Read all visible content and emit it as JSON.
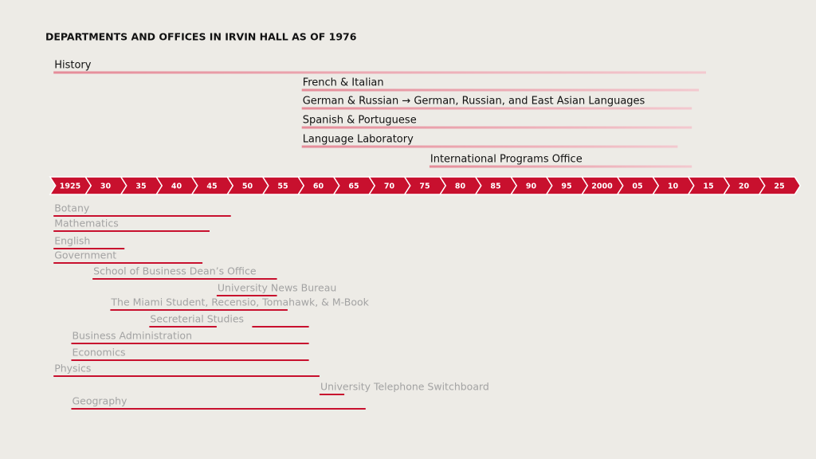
{
  "title": "DEPARTMENTS AND OFFICES IN IRVIN HALL AS OF 1976",
  "timeline": {
    "ticks": [
      1925,
      {
        "value": 1930,
        "label": "30"
      },
      {
        "value": 1935,
        "label": "35"
      },
      {
        "value": 1940,
        "label": "40"
      },
      {
        "value": 1945,
        "label": "45"
      },
      {
        "value": 1950,
        "label": "50"
      },
      {
        "value": 1955,
        "label": "55"
      },
      {
        "value": 1960,
        "label": "60"
      },
      {
        "value": 1965,
        "label": "65"
      },
      {
        "value": 1970,
        "label": "70"
      },
      {
        "value": 1975,
        "label": "75"
      },
      {
        "value": 1980,
        "label": "80"
      },
      {
        "value": 1985,
        "label": "85"
      },
      {
        "value": 1990,
        "label": "90"
      },
      {
        "value": 1995,
        "label": "95"
      },
      2000,
      {
        "value": 2005,
        "label": "05"
      },
      {
        "value": 2010,
        "label": "10"
      },
      {
        "value": 2015,
        "label": "15"
      },
      {
        "value": 2020,
        "label": "20"
      },
      {
        "value": 2025,
        "label": "25"
      }
    ]
  },
  "upper": [
    {
      "label": "History",
      "spans": [
        [
          1923,
          2015
        ]
      ]
    },
    {
      "label": "French & Italian",
      "spans": [
        [
          1958,
          2014
        ]
      ]
    },
    {
      "label": "German & Russian → German, Russian, and East Asian Languages",
      "spans": [
        [
          1958,
          2013
        ]
      ]
    },
    {
      "label": "Spanish & Portuguese",
      "spans": [
        [
          1958,
          2013
        ]
      ]
    },
    {
      "label": "Language Laboratory",
      "spans": [
        [
          1958,
          2011
        ]
      ]
    },
    {
      "label": "International Programs Office",
      "spans": [
        [
          1976,
          2013
        ]
      ]
    }
  ],
  "lower": [
    {
      "label": "Botany",
      "spans": [
        [
          1923,
          1948
        ]
      ]
    },
    {
      "label": "Mathematics",
      "spans": [
        [
          1923,
          1945
        ]
      ]
    },
    {
      "label": "English",
      "spans": [
        [
          1923,
          1933
        ]
      ]
    },
    {
      "label": "Government",
      "spans": [
        [
          1923,
          1944
        ]
      ]
    },
    {
      "label": "School of Business Dean’s Office",
      "spans": [
        [
          1928.5,
          1954.5
        ]
      ]
    },
    {
      "label": "University News Bureau",
      "spans": [
        [
          1946,
          1954.5
        ]
      ]
    },
    {
      "label": "The Miami Student, Recensio, Tomahawk, & M-Book",
      "spans": [
        [
          1931,
          1956
        ]
      ]
    },
    {
      "label": "Secreterial Studies",
      "spans": [
        [
          1936.5,
          1946
        ],
        [
          1951,
          1959
        ]
      ]
    },
    {
      "label": "Business Administration",
      "spans": [
        [
          1925.5,
          1959
        ]
      ]
    },
    {
      "label": "Economics",
      "spans": [
        [
          1925.5,
          1959
        ]
      ]
    },
    {
      "label": "Physics",
      "spans": [
        [
          1923,
          1960.5
        ]
      ]
    },
    {
      "label": "University Telephone Switchboard",
      "spans": [
        [
          1960.5,
          1964
        ]
      ]
    },
    {
      "label": "Geography",
      "spans": [
        [
          1925.5,
          1967
        ]
      ]
    }
  ]
}
